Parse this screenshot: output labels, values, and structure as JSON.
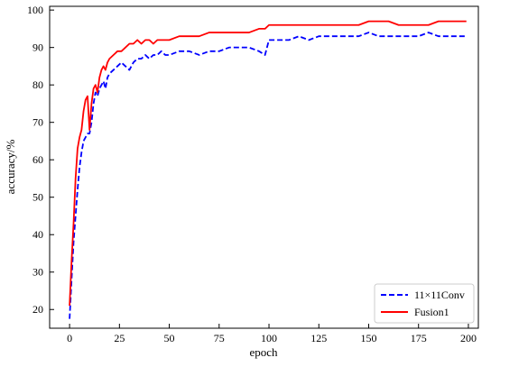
{
  "chart_data": {
    "type": "line",
    "title": "",
    "xlabel": "epoch",
    "ylabel": "accuracy/%",
    "xlim": [
      -10,
      205
    ],
    "ylim": [
      15,
      101
    ],
    "xticks": [
      0,
      25,
      50,
      75,
      100,
      125,
      150,
      175,
      200
    ],
    "yticks": [
      20,
      30,
      40,
      50,
      60,
      70,
      80,
      90,
      100
    ],
    "grid": false,
    "legend": "bottom-right",
    "series": [
      {
        "name": "11×11Conv",
        "color": "#0000ff",
        "style": "dashed",
        "x": [
          0,
          1,
          2,
          3,
          4,
          5,
          6,
          7,
          8,
          9,
          10,
          11,
          12,
          13,
          14,
          15,
          16,
          17,
          18,
          19,
          20,
          22,
          24,
          26,
          28,
          30,
          32,
          34,
          36,
          38,
          40,
          42,
          44,
          46,
          48,
          50,
          55,
          60,
          65,
          70,
          75,
          80,
          85,
          90,
          95,
          98,
          100,
          105,
          110,
          115,
          120,
          125,
          130,
          135,
          140,
          145,
          150,
          155,
          160,
          165,
          170,
          175,
          180,
          185,
          190,
          195,
          199
        ],
        "values": [
          17.5,
          28,
          38,
          45,
          52,
          58,
          62,
          65,
          66,
          67,
          67,
          70,
          75,
          78,
          77,
          79,
          80,
          81,
          79,
          82,
          83,
          84,
          85,
          86,
          85,
          84,
          86,
          87,
          87,
          88,
          87,
          88,
          88,
          89,
          88,
          88,
          89,
          89,
          88,
          89,
          89,
          90,
          90,
          90,
          89,
          88,
          92,
          92,
          92,
          93,
          92,
          93,
          93,
          93,
          93,
          93,
          94,
          93,
          93,
          93,
          93,
          93,
          94,
          93,
          93,
          93,
          93
        ]
      },
      {
        "name": "Fusion1",
        "color": "#ff0000",
        "style": "solid",
        "x": [
          0,
          1,
          2,
          3,
          4,
          5,
          6,
          7,
          8,
          9,
          10,
          11,
          12,
          13,
          14,
          15,
          16,
          17,
          18,
          19,
          20,
          22,
          24,
          26,
          28,
          30,
          32,
          34,
          36,
          38,
          40,
          42,
          44,
          46,
          48,
          50,
          55,
          60,
          65,
          70,
          75,
          80,
          85,
          90,
          95,
          98,
          100,
          105,
          110,
          115,
          120,
          125,
          130,
          135,
          140,
          145,
          150,
          155,
          160,
          165,
          170,
          175,
          180,
          185,
          190,
          195,
          199
        ],
        "values": [
          21,
          33,
          43,
          55,
          63,
          66,
          68,
          73,
          76,
          77,
          68,
          75,
          79,
          80,
          78,
          82,
          84,
          85,
          84,
          86,
          87,
          88,
          89,
          89,
          90,
          91,
          91,
          92,
          91,
          92,
          92,
          91,
          92,
          92,
          92,
          92,
          93,
          93,
          93,
          94,
          94,
          94,
          94,
          94,
          95,
          95,
          96,
          96,
          96,
          96,
          96,
          96,
          96,
          96,
          96,
          96,
          97,
          97,
          97,
          96,
          96,
          96,
          96,
          97,
          97,
          97,
          97
        ]
      }
    ]
  }
}
